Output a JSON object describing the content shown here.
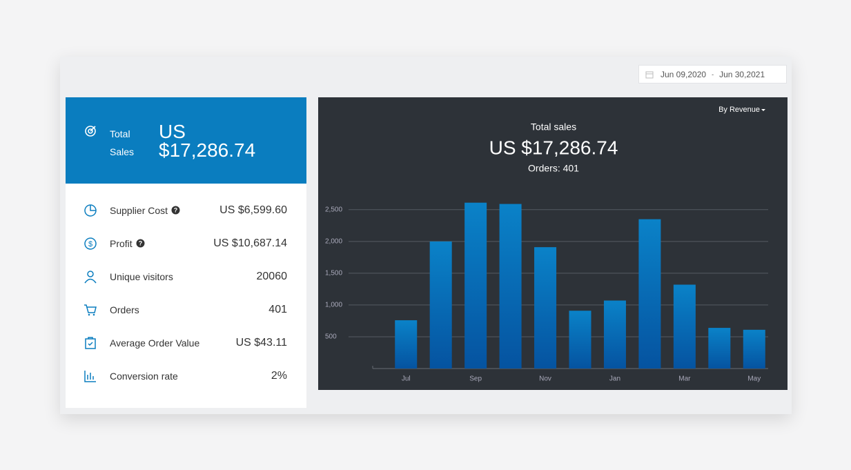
{
  "date_range": {
    "start": "Jun 09,2020",
    "separator": "-",
    "end": "Jun 30,2021"
  },
  "summary": {
    "label": "Total Sales",
    "value": "US $17,286.74"
  },
  "metrics": [
    {
      "label": "Supplier Cost",
      "value": "US $6,599.60"
    },
    {
      "label": "Profit",
      "value": "US $10,687.14"
    },
    {
      "label": "Unique visitors",
      "value": "20060"
    },
    {
      "label": "Orders",
      "value": "401"
    },
    {
      "label": "Average Order Value",
      "value": "US $43.11"
    },
    {
      "label": "Conversion rate",
      "value": "2%"
    }
  ],
  "chart_data": {
    "type": "bar",
    "selector": "By Revenue",
    "title": "Total sales",
    "subtitle": "US $17,286.74",
    "note": "Orders: 401",
    "categories": [
      "Jul",
      null,
      "Sep",
      null,
      "Nov",
      null,
      "Jan",
      null,
      "Mar",
      null,
      "May"
    ],
    "values": [
      760,
      2000,
      2610,
      2590,
      1910,
      910,
      1070,
      2350,
      1320,
      640,
      610
    ],
    "color": "#0a82c8",
    "ylim": [
      0,
      2650
    ],
    "yticks": [
      500,
      {
        "value": 1000,
        "label": "1,000"
      },
      {
        "value": 1500,
        "label": "1,500"
      },
      {
        "value": 2000,
        "label": "2,000"
      },
      {
        "value": 2500,
        "label": "2,500"
      }
    ],
    "grid": true
  }
}
